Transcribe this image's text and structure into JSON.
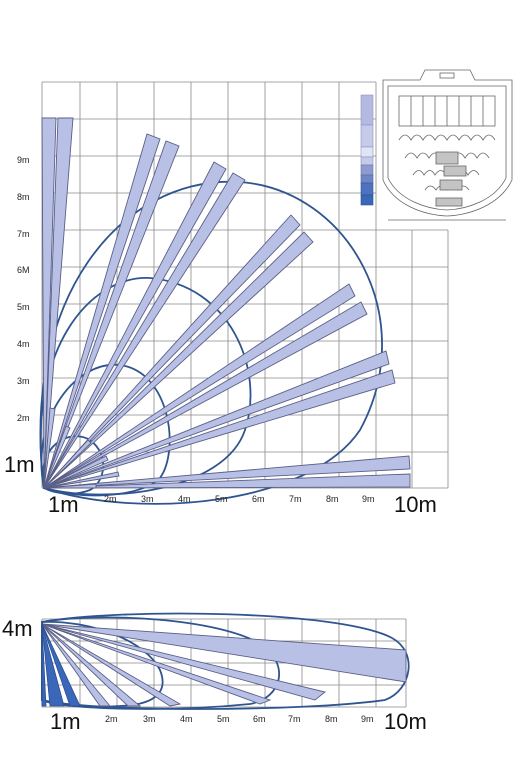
{
  "top_diagram": {
    "y_labels": [
      "1m",
      "2m",
      "3m",
      "4m",
      "5m",
      "6M",
      "7m",
      "8m",
      "9m"
    ],
    "x_labels": [
      "1m",
      "2m",
      "3m",
      "4m",
      "5m",
      "6m",
      "7m",
      "8m",
      "9m",
      "10m"
    ]
  },
  "side_diagram": {
    "height_label": "4m",
    "x_labels": [
      "1m",
      "2m",
      "3m",
      "4m",
      "5m",
      "6m",
      "7m",
      "8m",
      "9m",
      "10m"
    ]
  },
  "legend_colors": [
    "#b3b9e0",
    "#c6cbea",
    "#e1e4f4",
    "#c4cae9",
    "#8e9bd0",
    "#6f86c6",
    "#4d72bf",
    "#3a67b8"
  ],
  "colors": {
    "beam_fill": "#b9c0e6",
    "beam_dark": "#3a67b8",
    "lobe": "#2f5590",
    "grid": "#8a8a8a"
  }
}
